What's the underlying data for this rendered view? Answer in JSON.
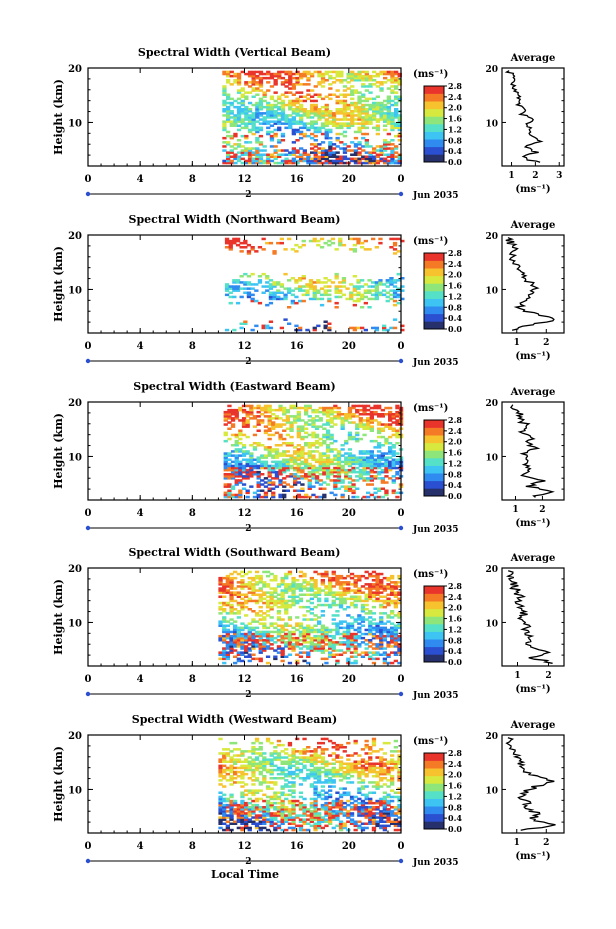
{
  "figure": {
    "xlabel": "Local Time",
    "date_label": "Jun 2035",
    "day_marker": "2",
    "colorbar_unit": "(ms⁻¹)",
    "avg_title": "Average",
    "avg_xlabel": "(ms⁻¹)",
    "ylabel": "Height (km)"
  },
  "chart_data": [
    {
      "type": "heatmap",
      "title": "Spectral Width (Vertical Beam)",
      "xlabel": "Local Time",
      "ylabel": "Height (km)",
      "x_ticks": [
        "0",
        "4",
        "8",
        "12",
        "16",
        "20",
        "0"
      ],
      "xlim": [
        0,
        24
      ],
      "y_ticks": [
        "10",
        "20"
      ],
      "ylim": [
        2,
        20
      ],
      "data_start_hour": 10.3,
      "colorbar": {
        "label": "(ms⁻¹)",
        "ticks": [
          "0.0",
          "0.4",
          "0.8",
          "1.2",
          "1.6",
          "2.0",
          "2.4",
          "2.8"
        ],
        "range": [
          0,
          2.8
        ]
      },
      "average": {
        "title": "Average",
        "xlabel": "(ms⁻¹)",
        "x_ticks": [
          "1",
          "2",
          "3"
        ],
        "xlim": [
          0.6,
          3.2
        ],
        "profile": [
          [
            2.7,
            2.1
          ],
          [
            3.5,
            1.5
          ],
          [
            4.5,
            2.0
          ],
          [
            5.5,
            1.6
          ],
          [
            6.5,
            2.1
          ],
          [
            7.5,
            1.8
          ],
          [
            8.5,
            1.9
          ],
          [
            9.5,
            1.7
          ],
          [
            10.5,
            1.8
          ],
          [
            11.5,
            1.5
          ],
          [
            12.5,
            1.5
          ],
          [
            13.5,
            1.3
          ],
          [
            14.5,
            1.3
          ],
          [
            15.5,
            1.2
          ],
          [
            16.5,
            1.1
          ],
          [
            17.5,
            1.1
          ],
          [
            18.5,
            1.0
          ],
          [
            19.5,
            0.9
          ]
        ]
      }
    },
    {
      "type": "heatmap",
      "title": "Spectral Width (Northward Beam)",
      "xlabel": "Local Time",
      "ylabel": "Height (km)",
      "x_ticks": [
        "0",
        "4",
        "8",
        "12",
        "16",
        "20",
        "0"
      ],
      "xlim": [
        0,
        24
      ],
      "y_ticks": [
        "10",
        "20"
      ],
      "ylim": [
        2,
        20
      ],
      "data_start_hour": 10.5,
      "colorbar": {
        "label": "(ms⁻¹)",
        "ticks": [
          "0.0",
          "0.4",
          "0.8",
          "1.2",
          "1.6",
          "2.0",
          "2.4",
          "2.8"
        ],
        "range": [
          0,
          2.8
        ]
      },
      "average": {
        "title": "Average",
        "xlabel": "(ms⁻¹)",
        "x_ticks": [
          "1",
          "2"
        ],
        "xlim": [
          0.5,
          2.6
        ],
        "profile": [
          [
            2.5,
            0.8
          ],
          [
            3.5,
            1.5
          ],
          [
            4.5,
            2.4
          ],
          [
            5.5,
            1.6
          ],
          [
            6.5,
            1.1
          ],
          [
            7.5,
            1.2
          ],
          [
            8.5,
            1.3
          ],
          [
            9.5,
            1.5
          ],
          [
            10.5,
            1.7
          ],
          [
            11.5,
            1.4
          ],
          [
            12.5,
            1.3
          ],
          [
            13.5,
            1.2
          ],
          [
            14.5,
            1.0
          ],
          [
            15.5,
            0.9
          ],
          [
            16.5,
            0.8
          ],
          [
            17.5,
            0.9
          ],
          [
            18.5,
            0.8
          ],
          [
            19.5,
            0.7
          ]
        ]
      }
    },
    {
      "type": "heatmap",
      "title": "Spectral Width (Eastward Beam)",
      "xlabel": "Local Time",
      "ylabel": "Height (km)",
      "x_ticks": [
        "0",
        "4",
        "8",
        "12",
        "16",
        "20",
        "0"
      ],
      "xlim": [
        0,
        24
      ],
      "y_ticks": [
        "10",
        "20"
      ],
      "ylim": [
        2,
        20
      ],
      "data_start_hour": 10.4,
      "colorbar": {
        "label": "(ms⁻¹)",
        "ticks": [
          "0.0",
          "0.4",
          "0.8",
          "1.2",
          "1.6",
          "2.0",
          "2.4",
          "2.8"
        ],
        "range": [
          0,
          2.8
        ]
      },
      "average": {
        "title": "Average",
        "xlabel": "(ms⁻¹)",
        "x_ticks": [
          "1",
          "2"
        ],
        "xlim": [
          0.5,
          2.8
        ],
        "profile": [
          [
            2.5,
            1.6
          ],
          [
            3.5,
            2.5
          ],
          [
            4.5,
            1.5
          ],
          [
            5.5,
            2.0
          ],
          [
            6.5,
            1.2
          ],
          [
            7.5,
            1.6
          ],
          [
            8.5,
            1.3
          ],
          [
            9.5,
            1.4
          ],
          [
            10.5,
            1.3
          ],
          [
            11.5,
            1.7
          ],
          [
            12.5,
            1.4
          ],
          [
            13.5,
            1.6
          ],
          [
            14.5,
            1.3
          ],
          [
            15.5,
            1.5
          ],
          [
            16.5,
            1.2
          ],
          [
            17.5,
            1.2
          ],
          [
            18.5,
            1.0
          ],
          [
            19.5,
            0.9
          ]
        ]
      }
    },
    {
      "type": "heatmap",
      "title": "Spectral Width (Southward Beam)",
      "xlabel": "Local Time",
      "ylabel": "Height (km)",
      "x_ticks": [
        "0",
        "4",
        "8",
        "12",
        "16",
        "20",
        "0"
      ],
      "xlim": [
        0,
        24
      ],
      "y_ticks": [
        "10",
        "20"
      ],
      "ylim": [
        2,
        20
      ],
      "data_start_hour": 10.0,
      "colorbar": {
        "label": "(ms⁻¹)",
        "ticks": [
          "0.0",
          "0.4",
          "0.8",
          "1.2",
          "1.6",
          "2.0",
          "2.4",
          "2.8"
        ],
        "range": [
          0,
          2.8
        ]
      },
      "average": {
        "title": "Average",
        "xlabel": "(ms⁻¹)",
        "x_ticks": [
          "1",
          "2"
        ],
        "xlim": [
          0.5,
          2.5
        ],
        "profile": [
          [
            2.5,
            2.2
          ],
          [
            3.5,
            1.5
          ],
          [
            4.5,
            1.9
          ],
          [
            5.5,
            1.4
          ],
          [
            6.5,
            1.3
          ],
          [
            7.5,
            1.4
          ],
          [
            8.5,
            1.2
          ],
          [
            9.5,
            1.3
          ],
          [
            10.5,
            1.1
          ],
          [
            11.5,
            1.2
          ],
          [
            12.5,
            1.1
          ],
          [
            13.5,
            1.0
          ],
          [
            14.5,
            1.1
          ],
          [
            15.5,
            1.0
          ],
          [
            16.5,
            0.9
          ],
          [
            17.5,
            0.9
          ],
          [
            18.5,
            0.8
          ],
          [
            19.5,
            0.7
          ]
        ]
      }
    },
    {
      "type": "heatmap",
      "title": "Spectral Width (Westward Beam)",
      "xlabel": "Local Time",
      "ylabel": "Height (km)",
      "x_ticks": [
        "0",
        "4",
        "8",
        "12",
        "16",
        "20",
        "0"
      ],
      "xlim": [
        0,
        24
      ],
      "y_ticks": [
        "10",
        "20"
      ],
      "ylim": [
        2,
        20
      ],
      "data_start_hour": 10.0,
      "colorbar": {
        "label": "(ms⁻¹)",
        "ticks": [
          "0.0",
          "0.4",
          "0.8",
          "1.2",
          "1.6",
          "2.0",
          "2.4",
          "2.8"
        ],
        "range": [
          0,
          2.8
        ]
      },
      "average": {
        "title": "Average",
        "xlabel": "(ms⁻¹)",
        "x_ticks": [
          "1",
          "2"
        ],
        "xlim": [
          0.5,
          2.6
        ],
        "profile": [
          [
            2.5,
            1.1
          ],
          [
            3.5,
            2.4
          ],
          [
            4.5,
            1.5
          ],
          [
            5.5,
            1.8
          ],
          [
            6.5,
            1.3
          ],
          [
            7.5,
            1.4
          ],
          [
            8.5,
            1.2
          ],
          [
            9.5,
            1.3
          ],
          [
            10.5,
            1.6
          ],
          [
            11.5,
            2.2
          ],
          [
            12.5,
            1.6
          ],
          [
            13.5,
            1.3
          ],
          [
            14.5,
            1.2
          ],
          [
            15.5,
            1.1
          ],
          [
            16.5,
            1.0
          ],
          [
            17.5,
            0.9
          ],
          [
            18.5,
            0.8
          ],
          [
            19.5,
            0.7
          ]
        ]
      }
    }
  ],
  "colormap": [
    "#26306b",
    "#2a4fd0",
    "#2f8bf0",
    "#3ec4f2",
    "#55e0c8",
    "#8ee67a",
    "#d7e83e",
    "#f6c22e",
    "#f47a25",
    "#e8342a"
  ]
}
